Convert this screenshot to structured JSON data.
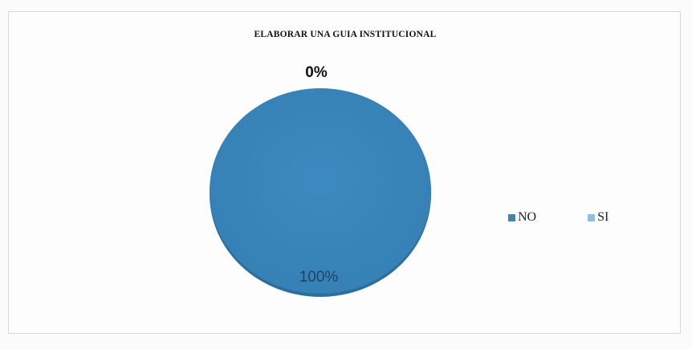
{
  "chart_data": {
    "type": "pie",
    "title": "ELABORAR UNA GUIA INSTITUCIONAL",
    "categories": [
      "NO",
      "SI"
    ],
    "values": [
      100,
      0
    ],
    "data_labels": [
      "100%",
      "0%"
    ],
    "colors": [
      "#3a85b9",
      "#8fbfe0"
    ],
    "legend_position": "right"
  }
}
